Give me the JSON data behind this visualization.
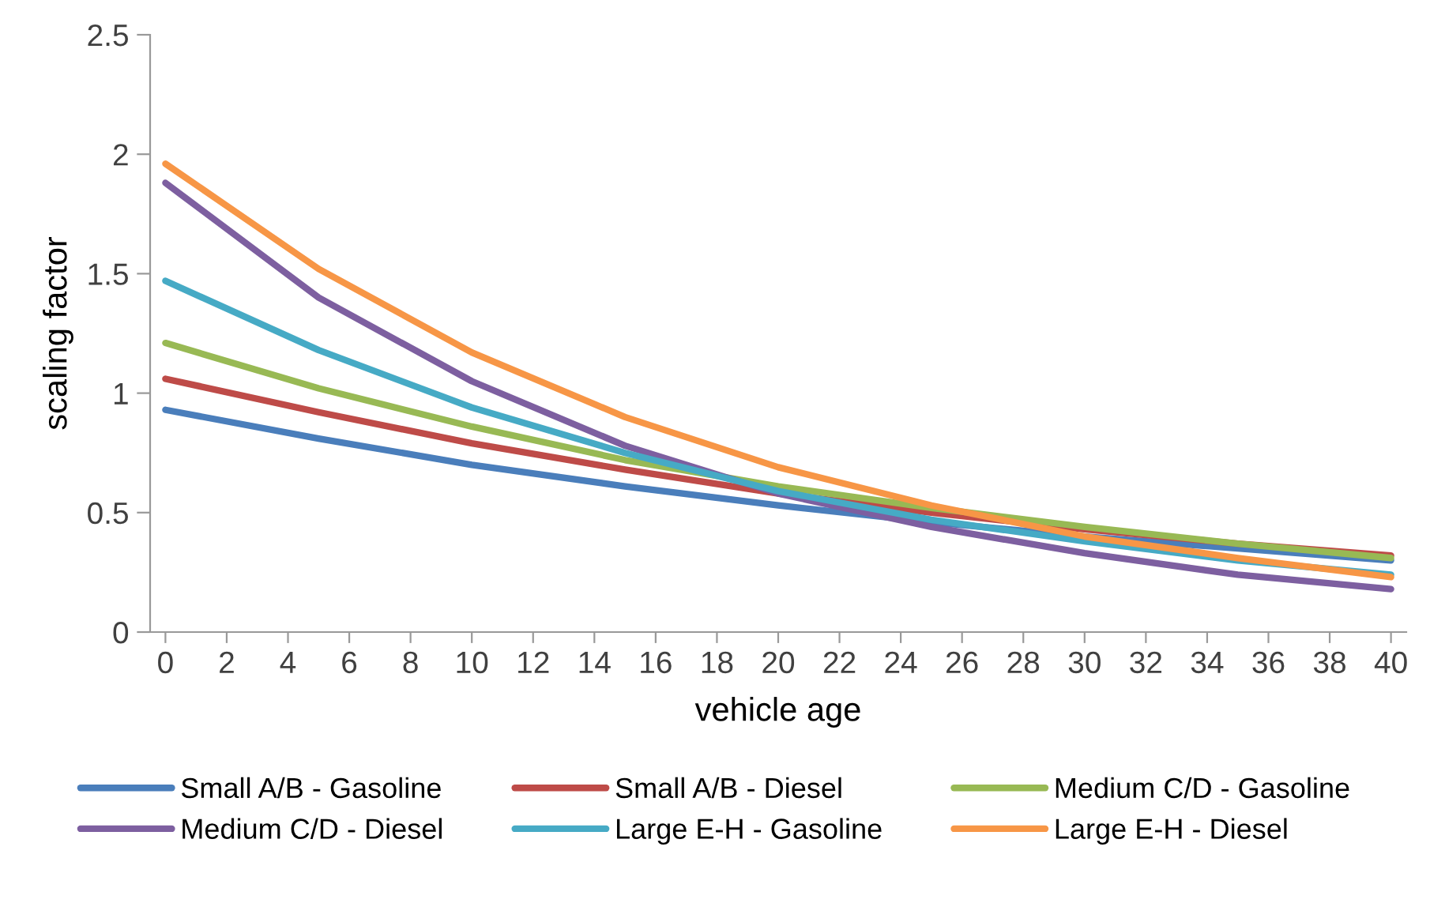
{
  "chart_data": {
    "type": "line",
    "xlabel": "vehicle age",
    "ylabel": "scaling factor",
    "x": [
      0,
      5,
      10,
      15,
      20,
      25,
      30,
      35,
      40
    ],
    "xlim": [
      -0.5,
      40.5
    ],
    "xticks": [
      0,
      2,
      4,
      6,
      8,
      10,
      12,
      14,
      16,
      18,
      20,
      22,
      24,
      26,
      28,
      30,
      32,
      34,
      36,
      38,
      40
    ],
    "ylim": [
      0,
      2.5
    ],
    "yticks": [
      0,
      0.5,
      1,
      1.5,
      2,
      2.5
    ],
    "grid": false,
    "legend": "bottom",
    "marker": "none",
    "line_style": "solid",
    "series": [
      {
        "name": "Small A/B - Gasoline",
        "color": "#4a7ebb",
        "values": [
          0.93,
          0.81,
          0.7,
          0.61,
          0.53,
          0.46,
          0.4,
          0.35,
          0.3
        ]
      },
      {
        "name": "Small A/B - Diesel",
        "color": "#be4b48",
        "values": [
          1.06,
          0.92,
          0.79,
          0.68,
          0.58,
          0.5,
          0.43,
          0.37,
          0.32
        ]
      },
      {
        "name": "Medium C/D - Gasoline",
        "color": "#98b954",
        "values": [
          1.21,
          1.02,
          0.86,
          0.72,
          0.61,
          0.52,
          0.44,
          0.37,
          0.31
        ]
      },
      {
        "name": "Medium C/D - Diesel",
        "color": "#7d5fa0",
        "values": [
          1.88,
          1.4,
          1.05,
          0.78,
          0.58,
          0.44,
          0.33,
          0.24,
          0.18
        ]
      },
      {
        "name": "Large E-H - Gasoline",
        "color": "#46aac5",
        "values": [
          1.47,
          1.18,
          0.94,
          0.75,
          0.59,
          0.47,
          0.38,
          0.3,
          0.24
        ]
      },
      {
        "name": "Large E-H - Diesel",
        "color": "#f79646",
        "values": [
          1.96,
          1.52,
          1.17,
          0.9,
          0.69,
          0.53,
          0.4,
          0.31,
          0.23
        ]
      }
    ]
  }
}
